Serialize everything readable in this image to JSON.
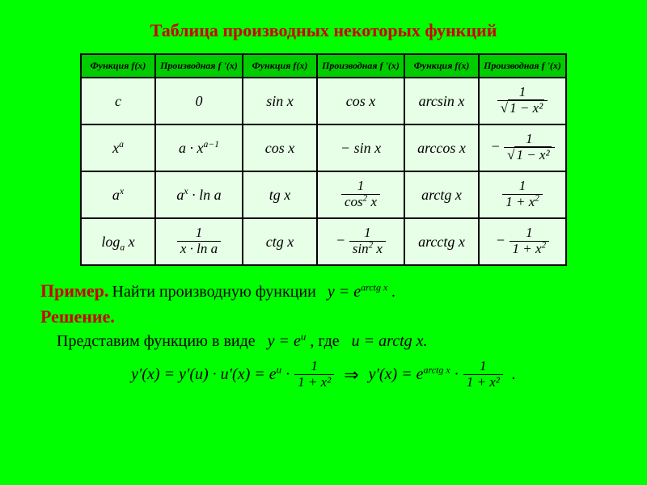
{
  "title": "Таблица производных некоторых функций",
  "table": {
    "header_repeat": {
      "func": "Функция f(x)",
      "deriv": "Производная f '(x)"
    },
    "background_header": "#00cc00",
    "background_body": "#e6ffe6",
    "border_color": "#000000",
    "rows": [
      {
        "f1": "c",
        "d1": "0",
        "f2": "sin x",
        "d2": "cos x",
        "f3": "arcsin x",
        "d3_frac": {
          "num": "1",
          "den_sqrt": "1 − x²"
        }
      },
      {
        "f1_html": "x<sup>a</sup>",
        "d1_html": "a · x<sup>a−1</sup>",
        "f2": "cos x",
        "d2": "− sin x",
        "f3": "arccos x",
        "d3_neg_frac": {
          "num": "1",
          "den_sqrt": "1 − x²"
        }
      },
      {
        "f1_html": "a<sup>x</sup>",
        "d1_html": "a<sup>x</sup> · ln a",
        "f2": "tg x",
        "d2_frac": {
          "num": "1",
          "den_html": "cos<sup>2</sup> x"
        },
        "f3": "arctg x",
        "d3_frac": {
          "num": "1",
          "den_html": "1 + x<sup>2</sup>"
        }
      },
      {
        "f1_html": "log<sub>a</sub> x",
        "d1_frac": {
          "num": "1",
          "den": "x · ln a"
        },
        "f2": "ctg x",
        "d2_neg_frac": {
          "num": "1",
          "den_html": "sin<sup>2</sup> x"
        },
        "f3": "arcctg x",
        "d3_neg_frac": {
          "num": "1",
          "den_html": "1 + x<sup>2</sup>"
        }
      }
    ]
  },
  "example": {
    "label": "Пример.",
    "text": "Найти производную функции",
    "func_y_eq": "y = e",
    "func_exp": "arctg x",
    "solution_label": "Решение.",
    "represent_text": "Представим функцию в виде",
    "represent_y": "y = e",
    "represent_exp": "u",
    "where": ", где",
    "u_eq": "u = arctg x.",
    "deriv_chain": "y′(x) = y′(u) · u′(x) = e<sup>u</sup> ·",
    "frac1": {
      "num": "1",
      "den": "1 + x²"
    },
    "arrow": "⇒",
    "result_lhs": "y′(x) = e",
    "result_exp": "arctg x",
    "frac2": {
      "num": "1",
      "den": "1 + x²"
    }
  },
  "colors": {
    "page_bg": "#00ff00",
    "title_color": "#cc0000"
  }
}
